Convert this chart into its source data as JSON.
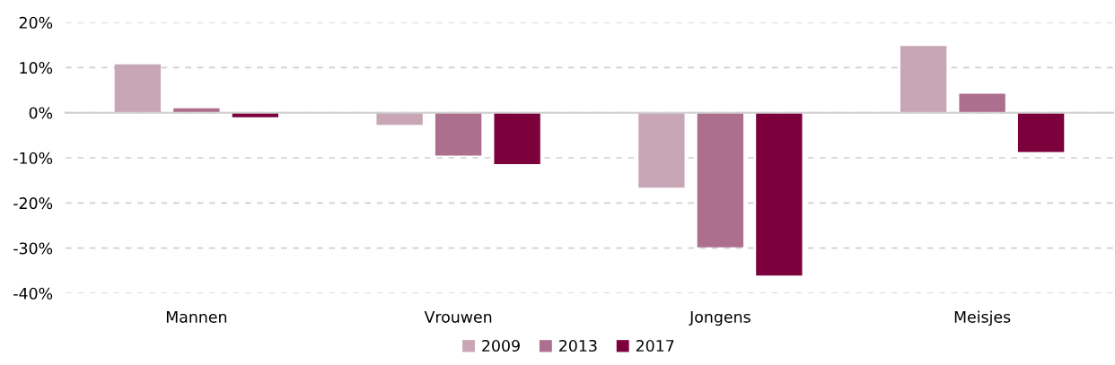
{
  "chart_data": {
    "type": "bar",
    "categories": [
      "Mannen",
      "Vrouwen",
      "Jongens",
      "Meisjes"
    ],
    "series": [
      {
        "name": "2009",
        "color": "#c8a6b6",
        "values": [
          10.7,
          -2.7,
          -16.6,
          14.8
        ]
      },
      {
        "name": "2013",
        "color": "#ad6f8e",
        "values": [
          1.0,
          -9.5,
          -29.8,
          4.2
        ]
      },
      {
        "name": "2017",
        "color": "#7b003c",
        "values": [
          -1.0,
          -11.4,
          -36.1,
          -8.7
        ]
      }
    ],
    "ylim": [
      -40,
      20
    ],
    "yticks": [
      {
        "value": -40,
        "label": "-40%"
      },
      {
        "value": -30,
        "label": "-30%"
      },
      {
        "value": -20,
        "label": "-20%"
      },
      {
        "value": -10,
        "label": "-10%"
      },
      {
        "value": 0,
        "label": "0%"
      },
      {
        "value": 10,
        "label": "10%"
      },
      {
        "value": 20,
        "label": "20%"
      }
    ],
    "grid": "y",
    "legend": "bottom"
  }
}
